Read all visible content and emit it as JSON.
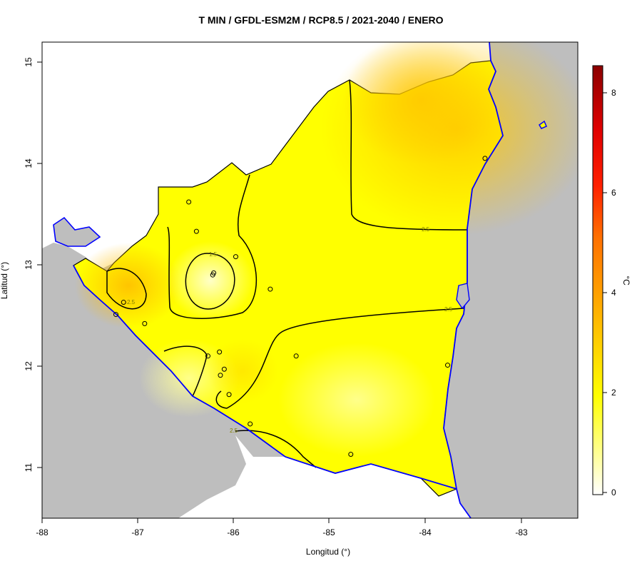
{
  "map": {
    "title": "T MIN / GFDL-ESM2M / RCP8.5 / 2021-2040 / ENERO",
    "xlabel": "Longitud (°)",
    "ylabel": "Latitud (°)",
    "x_ticks": [
      "-88",
      "-87",
      "-86",
      "-85",
      "-84",
      "-83"
    ],
    "y_ticks": [
      "11",
      "12",
      "13",
      "14",
      "15"
    ],
    "colorbar": {
      "unit": "°C",
      "ticks": [
        "0",
        "2",
        "4",
        "6",
        "8"
      ],
      "range": [
        0,
        8.6
      ],
      "colors": [
        "#ffffff",
        "#ffff00",
        "#ffc000",
        "#ff8000",
        "#ff0000",
        "#8b0000"
      ]
    },
    "contour_labels": [
      "2.5",
      "1.5",
      "2.5",
      "2.5",
      "2.5"
    ],
    "colors": {
      "land": "#ffff00",
      "ocean": "#bebebe",
      "coast": "#0000ff",
      "contour": "#000000"
    }
  },
  "chart_data": {
    "type": "heatmap",
    "title": "T MIN / GFDL-ESM2M / RCP8.5 / 2021-2040 / ENERO",
    "xlabel": "Longitud (°)",
    "ylabel": "Latitud (°)",
    "xlim": [
      -88,
      -82.4
    ],
    "ylim": [
      10.5,
      15.2
    ],
    "zlim": [
      0,
      8.6
    ],
    "z_unit": "°C",
    "contour_levels": [
      1.5,
      2.5
    ],
    "stations": [
      {
        "lon": -86.47,
        "lat": 13.62
      },
      {
        "lon": -86.39,
        "lat": 13.33
      },
      {
        "lon": -86.22,
        "lat": 12.9
      },
      {
        "lon": -86.21,
        "lat": 12.92
      },
      {
        "lon": -85.98,
        "lat": 13.08
      },
      {
        "lon": -85.62,
        "lat": 12.76
      },
      {
        "lon": -87.15,
        "lat": 12.63
      },
      {
        "lon": -87.23,
        "lat": 12.51
      },
      {
        "lon": -86.93,
        "lat": 12.42
      },
      {
        "lon": -86.27,
        "lat": 12.1
      },
      {
        "lon": -86.15,
        "lat": 12.14
      },
      {
        "lon": -86.14,
        "lat": 11.91
      },
      {
        "lon": -86.1,
        "lat": 11.97
      },
      {
        "lon": -86.05,
        "lat": 11.72
      },
      {
        "lon": -85.35,
        "lat": 12.1
      },
      {
        "lon": -85.83,
        "lat": 11.43
      },
      {
        "lon": -84.78,
        "lat": 11.13
      },
      {
        "lon": -83.77,
        "lat": 12.01
      },
      {
        "lon": -83.38,
        "lat": 14.05
      }
    ]
  }
}
